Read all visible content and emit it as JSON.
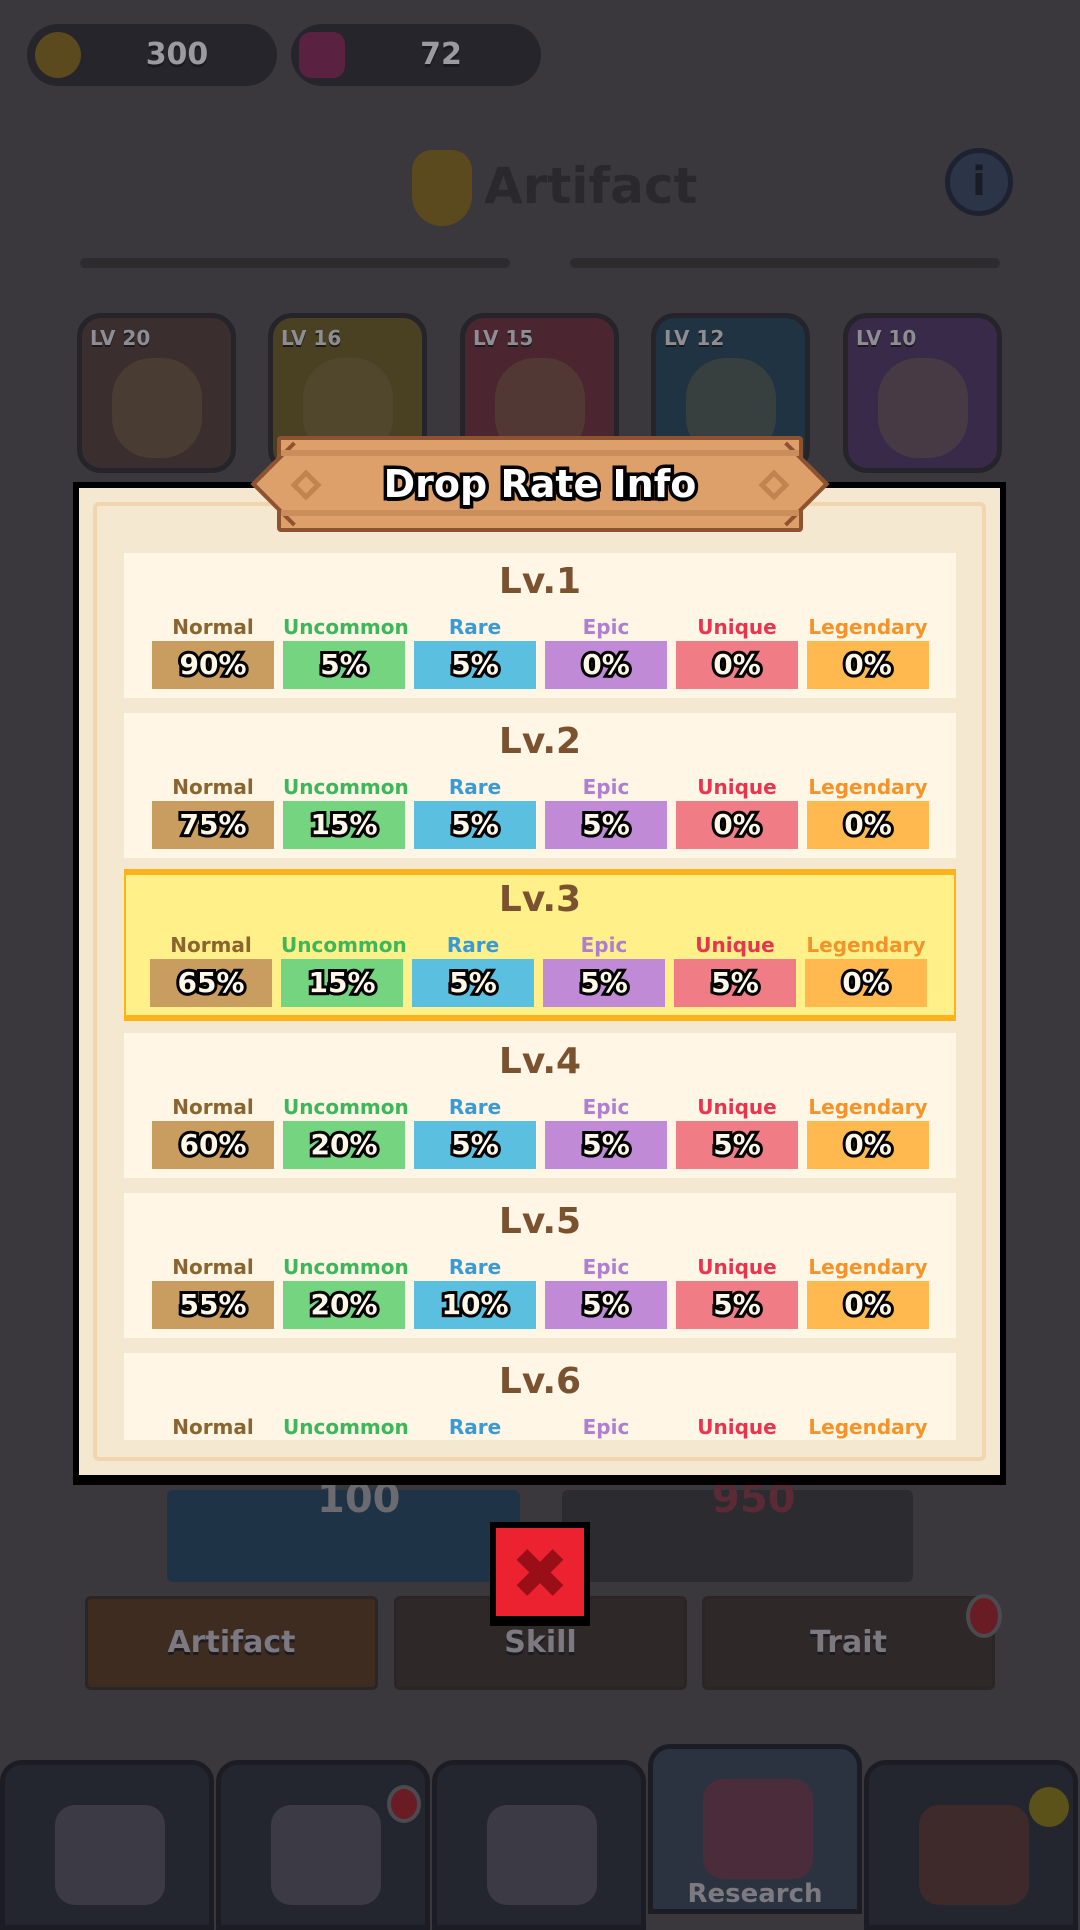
{
  "currency": {
    "gold": "300",
    "gems": "72"
  },
  "header": {
    "title": "Artifact"
  },
  "artifacts": [
    {
      "level": "LV 20",
      "color": "#3b2e2e"
    },
    {
      "level": "LV 16",
      "color": "#4a4123"
    },
    {
      "level": "LV 15",
      "color": "#4b2630"
    },
    {
      "level": "LV 12",
      "color": "#1f3342"
    },
    {
      "level": "LV 10",
      "color": "#3a2a4a"
    }
  ],
  "behind_buttons": {
    "left_cost": "100",
    "right_cost": "950"
  },
  "category_tabs": [
    {
      "label": "Artifact",
      "active": true
    },
    {
      "label": "Skill"
    },
    {
      "label": "Trait"
    }
  ],
  "bottom_nav": {
    "active_label": "Research"
  },
  "modal": {
    "title": "Drop Rate Info",
    "rarities": [
      {
        "name": "Normal",
        "label_color": "#8a6530",
        "box_color": "#c89d5f"
      },
      {
        "name": "Uncommon",
        "label_color": "#3cb85a",
        "box_color": "#74d480"
      },
      {
        "name": "Rare",
        "label_color": "#3a9ad4",
        "box_color": "#5bbfe0"
      },
      {
        "name": "Epic",
        "label_color": "#b07ed0",
        "box_color": "#c08ad6"
      },
      {
        "name": "Unique",
        "label_color": "#e8344c",
        "box_color": "#f07c86"
      },
      {
        "name": "Legendary",
        "label_color": "#f5922a",
        "box_color": "#ffb94f"
      }
    ],
    "levels": [
      {
        "label": "Lv.1",
        "rates": [
          "90%",
          "5%",
          "5%",
          "0%",
          "0%",
          "0%"
        ]
      },
      {
        "label": "Lv.2",
        "rates": [
          "75%",
          "15%",
          "5%",
          "5%",
          "0%",
          "0%"
        ]
      },
      {
        "label": "Lv.3",
        "current": true,
        "rates": [
          "65%",
          "15%",
          "5%",
          "5%",
          "5%",
          "0%"
        ]
      },
      {
        "label": "Lv.4",
        "rates": [
          "60%",
          "20%",
          "5%",
          "5%",
          "5%",
          "0%"
        ]
      },
      {
        "label": "Lv.5",
        "rates": [
          "55%",
          "20%",
          "10%",
          "5%",
          "5%",
          "0%"
        ]
      },
      {
        "label": "Lv.6",
        "rates": []
      }
    ]
  }
}
